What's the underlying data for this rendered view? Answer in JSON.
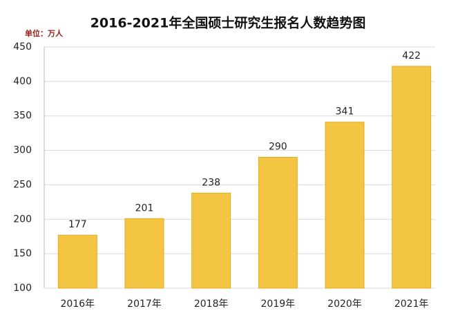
{
  "chart_data": {
    "type": "bar",
    "title": "2016-2021年全国硕士研究生报名人数趋势图",
    "unit_label": "单位：万人",
    "categories": [
      "2016年",
      "2017年",
      "2018年",
      "2019年",
      "2020年",
      "2021年"
    ],
    "values": [
      177,
      201,
      238,
      290,
      341,
      422
    ],
    "color": "#f4c542",
    "ylim": [
      100,
      450
    ],
    "yticks": [
      100,
      150,
      200,
      250,
      300,
      350,
      400,
      450
    ],
    "grid": true
  }
}
